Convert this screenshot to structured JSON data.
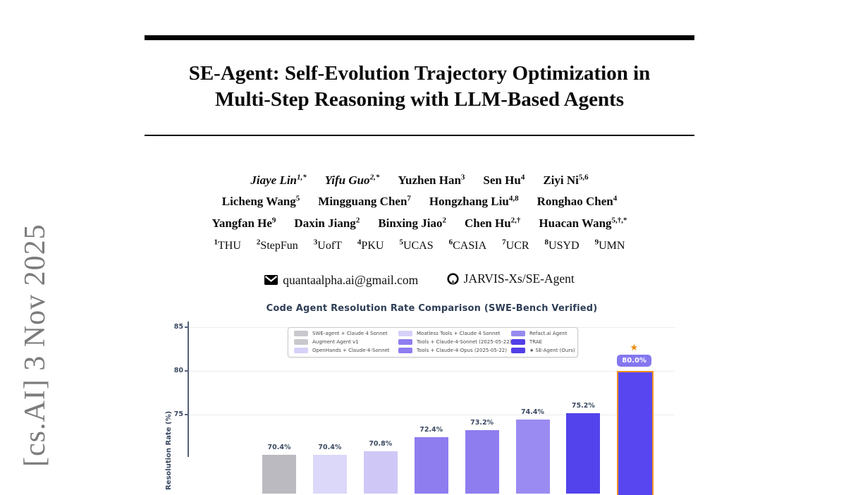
{
  "page": {
    "arxiv_banner": "[cs.AI]  3 Nov 2025",
    "title_line1": "SE-Agent: Self-Evolution Trajectory Optimization in",
    "title_line2": "Multi-Step Reasoning with LLM-Based Agents"
  },
  "authors": {
    "rows": [
      [
        {
          "name": "Jiaye Lin",
          "sup": "1,*",
          "italic": true
        },
        {
          "name": "Yifu Guo",
          "sup": "2,*",
          "italic": true
        },
        {
          "name": "Yuzhen Han",
          "sup": "3"
        },
        {
          "name": "Sen Hu",
          "sup": "4"
        },
        {
          "name": "Ziyi Ni",
          "sup": "5,6"
        }
      ],
      [
        {
          "name": "Licheng Wang",
          "sup": "5"
        },
        {
          "name": "Mingguang Chen",
          "sup": "7"
        },
        {
          "name": "Hongzhang Liu",
          "sup": "4,8"
        },
        {
          "name": "Ronghao Chen",
          "sup": "4"
        }
      ],
      [
        {
          "name": "Yangfan He",
          "sup": "9"
        },
        {
          "name": "Daxin Jiang",
          "sup": "2"
        },
        {
          "name": "Binxing Jiao",
          "sup": "2"
        },
        {
          "name": "Chen Hu",
          "sup": "2,†"
        },
        {
          "name": "Huacan Wang",
          "sup": "5,†,*"
        }
      ]
    ]
  },
  "affiliations": [
    {
      "sup": "1",
      "label": "THU"
    },
    {
      "sup": "2",
      "label": "StepFun"
    },
    {
      "sup": "3",
      "label": "UofT"
    },
    {
      "sup": "4",
      "label": "PKU"
    },
    {
      "sup": "5",
      "label": "UCAS"
    },
    {
      "sup": "6",
      "label": "CASIA"
    },
    {
      "sup": "7",
      "label": "UCR"
    },
    {
      "sup": "8",
      "label": "USYD"
    },
    {
      "sup": "9",
      "label": "UMN"
    }
  ],
  "contact": {
    "email": "quantaalpha.ai@gmail.com",
    "github": "JARVIS-Xs/SE-Agent"
  },
  "chart_data": {
    "type": "bar",
    "title": "Code Agent Resolution Rate Comparison (SWE-Bench Verified)",
    "ylabel": "Resolution Rate (%)",
    "ylim_visible": [
      70,
      85
    ],
    "yticks": [
      85,
      80,
      75
    ],
    "grid": true,
    "legend_position": "upper center",
    "legend": [
      {
        "label": "SWE-agent + Claude 4 Sonnet",
        "color": "#c8c8cd"
      },
      {
        "label": "Augment Agent v1",
        "color": "#c8c8cd"
      },
      {
        "label": "OpenHands + Claude-4-Sonnet",
        "color": "#d6d1f8"
      },
      {
        "label": "Moatless Tools + Claude 4 Sonnet",
        "color": "#d6d1f8"
      },
      {
        "label": "Tools + Claude-4-Sonnet (2025-05-22)",
        "color": "#8e7df0"
      },
      {
        "label": "Tools + Claude-4-Opus (2025-05-22)",
        "color": "#8e7df0"
      },
      {
        "label": "Refact.ai Agent",
        "color": "#968af0"
      },
      {
        "label": "TRAE",
        "color": "#5140e8"
      },
      {
        "label": "★ SE-Agent (Ours)",
        "color": "#5140e8"
      }
    ],
    "bars": [
      {
        "name": "Augment Agent v1",
        "value": 70.4,
        "label": "70.4%",
        "color": "#bbbac0"
      },
      {
        "name": "OpenHands + Claude-4-Sonnet",
        "value": 70.4,
        "label": "70.4%",
        "color": "#dcd8fa"
      },
      {
        "name": "Moatless Tools + Claude 4 Sonnet",
        "value": 70.8,
        "label": "70.8%",
        "color": "#cfc8f6"
      },
      {
        "name": "Tools + Claude-4-Sonnet (2025-05-22)",
        "value": 72.4,
        "label": "72.4%",
        "color": "#8e7def"
      },
      {
        "name": "Tools + Claude-4-Opus (2025-05-22)",
        "value": 73.2,
        "label": "73.2%",
        "color": "#8e7def"
      },
      {
        "name": "Refact.ai Agent",
        "value": 74.4,
        "label": "74.4%",
        "color": "#9a8bf2"
      },
      {
        "name": "TRAE",
        "value": 75.2,
        "label": "75.2%",
        "color": "#5243ec"
      },
      {
        "name": "SE-Agent (Ours)",
        "value": 80.0,
        "label": "80.0%",
        "color": "#5847f0",
        "highlight": true
      }
    ],
    "highlight": {
      "border_color": "#ef941f",
      "star": "★",
      "star_color": "#ef8c12",
      "badge_bg": "#8577f0",
      "badge_text_color": "#ffffff"
    }
  }
}
